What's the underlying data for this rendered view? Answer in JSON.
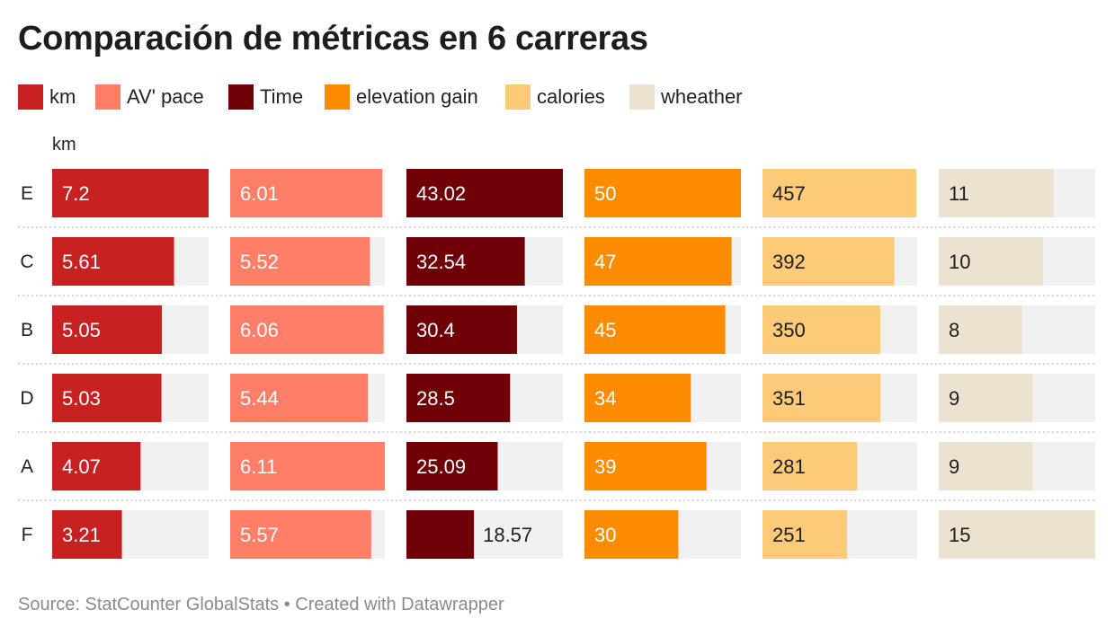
{
  "title": "Comparación de métricas en 6 carreras",
  "column_header": "km",
  "footer": {
    "source": "Source: StatCounter GlobalStats",
    "separator": "•",
    "credit": "Created with Datawrapper"
  },
  "colors": {
    "km": "#c72221",
    "av_pace": "#ff7e68",
    "time": "#6f0008",
    "elevation_gain": "#fb8c02",
    "calories": "#fdca78",
    "wheather": "#ebe3cf",
    "track": "#f1f1f1",
    "separator": "#c8c8c8"
  },
  "chart_data": {
    "type": "bar",
    "orientation": "horizontal",
    "layout": "small-multiples",
    "title": "Comparación de métricas en 6 carreras",
    "categories": [
      "E",
      "C",
      "B",
      "D",
      "A",
      "F"
    ],
    "series": [
      {
        "name": "km",
        "values": [
          7.2,
          5.61,
          5.05,
          5.03,
          4.07,
          3.21
        ],
        "max": 7.2,
        "label_color": "#ffffff"
      },
      {
        "name": "AV' pace",
        "values": [
          6.01,
          5.52,
          6.06,
          5.44,
          6.11,
          5.57
        ],
        "max": 6.11,
        "label_color": "#ffffff"
      },
      {
        "name": "Time",
        "values": [
          43.02,
          32.54,
          30.4,
          28.5,
          25.09,
          18.57
        ],
        "max": 43.02,
        "label_color": "#ffffff"
      },
      {
        "name": "elevation gain",
        "values": [
          50,
          47,
          45,
          34,
          39,
          30
        ],
        "max": 50,
        "label_color": "#ffffff"
      },
      {
        "name": "calories",
        "values": [
          457,
          392,
          350,
          351,
          281,
          251
        ],
        "max": 460,
        "label_color": "#1d1d1d"
      },
      {
        "name": "wheather",
        "values": [
          11,
          10,
          8,
          9,
          9,
          15
        ],
        "max": 15,
        "label_color": "#1d1d1d"
      }
    ],
    "legend": "top-left",
    "grid": false
  }
}
